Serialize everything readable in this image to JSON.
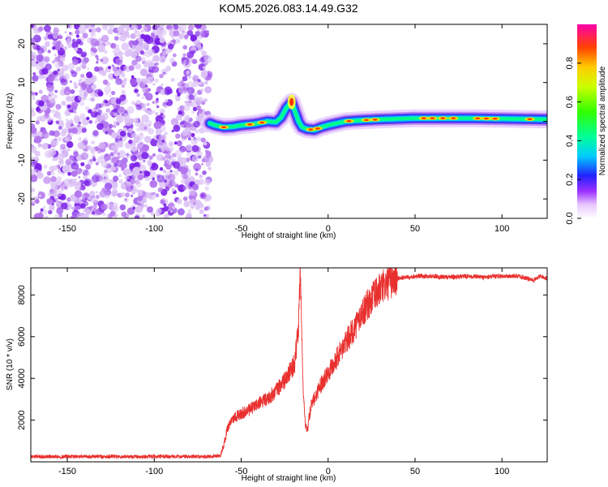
{
  "title": "KOM5.2026.083.14.49.G32",
  "chart_data": [
    {
      "type": "heatmap",
      "name": "spectrogram",
      "xlabel": "Height of straight line (km)",
      "ylabel": "Frequency (Hz)",
      "xlim": [
        -171,
        126
      ],
      "ylim": [
        -25,
        25
      ],
      "x_ticks": [
        "-150",
        "-100",
        "-50",
        "0",
        "50",
        "100"
      ],
      "y_ticks": [
        "-20",
        "-10",
        "0",
        "10",
        "20"
      ],
      "noise_region_x": [
        -171,
        -68
      ],
      "signal_ridge": {
        "x": [
          -68,
          -65,
          -60,
          -55,
          -50,
          -45,
          -40,
          -35,
          -30,
          -27,
          -24,
          -21,
          -19,
          -17,
          -15,
          -12,
          -8,
          -4,
          0,
          5,
          10,
          20,
          30,
          50,
          80,
          126
        ],
        "freq": [
          -0.5,
          -1,
          -1.5,
          -1.4,
          -1,
          -0.8,
          -0.5,
          0,
          -0.2,
          1,
          3.5,
          5,
          2.5,
          0,
          -1.5,
          -2,
          -2.2,
          -1.5,
          -1,
          -0.5,
          0,
          0.3,
          0.5,
          0.8,
          0.8,
          0.5
        ]
      },
      "colorbar": {
        "label": "Normalized spectral amplitude",
        "range": [
          0.0,
          1.0
        ],
        "ticks": [
          "0.0",
          "0.2",
          "0.4",
          "0.6",
          "0.8"
        ]
      }
    },
    {
      "type": "line",
      "name": "snr",
      "xlabel": "Height of straight line (km)",
      "ylabel": "SNR (10 * v/v)",
      "xlim": [
        -171,
        126
      ],
      "ylim": [
        0,
        9300
      ],
      "x_ticks": [
        "-150",
        "-100",
        "-50",
        "0",
        "50",
        "100"
      ],
      "y_ticks": [
        "2000",
        "4000",
        "6000",
        "8000"
      ],
      "series": [
        {
          "name": "SNR",
          "color": "#e8302e",
          "x": [
            -171,
            -140,
            -100,
            -70,
            -62,
            -60,
            -58,
            -55,
            -50,
            -45,
            -40,
            -35,
            -30,
            -25,
            -22,
            -19,
            -17,
            -16,
            -15,
            -14,
            -13,
            -12,
            -10,
            -5,
            0,
            5,
            10,
            15,
            20,
            25,
            30,
            35,
            40,
            50,
            60,
            70,
            80,
            90,
            100,
            110,
            118,
            122,
            126
          ],
          "y": [
            250,
            250,
            250,
            250,
            300,
            800,
            1600,
            2100,
            2300,
            2500,
            2800,
            3000,
            3400,
            3900,
            4300,
            4800,
            6500,
            9300,
            5500,
            2800,
            1800,
            1500,
            2600,
            3600,
            4300,
            5000,
            5700,
            6400,
            7200,
            7800,
            8300,
            8600,
            8800,
            8900,
            8900,
            8850,
            8900,
            8850,
            8900,
            8900,
            8700,
            8900,
            8800
          ]
        }
      ]
    }
  ]
}
